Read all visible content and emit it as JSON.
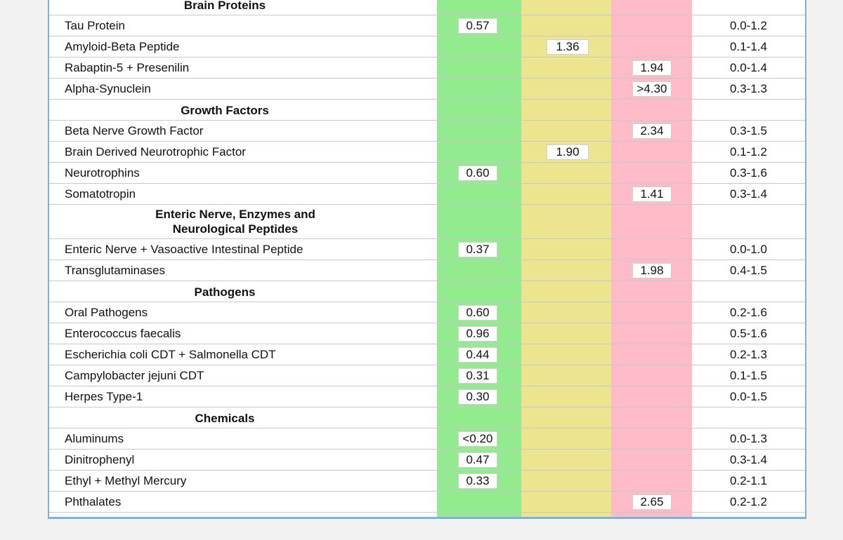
{
  "rows": [
    {
      "type": "header",
      "label": "Brain Proteins"
    },
    {
      "type": "item",
      "name": "Tau Protein",
      "value": "0.57",
      "zone": "g",
      "range": "0.0-1.2"
    },
    {
      "type": "item",
      "name": "Amyloid-Beta Peptide",
      "value": "1.36",
      "zone": "y",
      "range": "0.1-1.4"
    },
    {
      "type": "item",
      "name": "Rabaptin-5 + Presenilin",
      "value": "1.94",
      "zone": "r",
      "range": "0.0-1.4"
    },
    {
      "type": "item",
      "name": "Alpha-Synuclein",
      "value": ">4.30",
      "zone": "r",
      "range": "0.3-1.3"
    },
    {
      "type": "header",
      "label": "Growth Factors"
    },
    {
      "type": "item",
      "name": "Beta Nerve Growth Factor",
      "value": "2.34",
      "zone": "r",
      "range": "0.3-1.5"
    },
    {
      "type": "item",
      "name": "Brain Derived Neurotrophic Factor",
      "value": "1.90",
      "zone": "y",
      "range": "0.1-1.2"
    },
    {
      "type": "item",
      "name": "Neurotrophins",
      "value": "0.60",
      "zone": "g",
      "range": "0.3-1.6"
    },
    {
      "type": "item",
      "name": "Somatotropin",
      "value": "1.41",
      "zone": "r",
      "range": "0.3-1.4"
    },
    {
      "type": "header2",
      "line1": "Enteric Nerve, Enzymes and",
      "line2": "Neurological Peptides"
    },
    {
      "type": "item",
      "name": "Enteric Nerve + Vasoactive Intestinal Peptide",
      "value": "0.37",
      "zone": "g",
      "range": "0.0-1.0"
    },
    {
      "type": "item",
      "name": "Transglutaminases",
      "value": "1.98",
      "zone": "r",
      "range": "0.4-1.5"
    },
    {
      "type": "header",
      "label": "Pathogens"
    },
    {
      "type": "item",
      "name": "Oral Pathogens",
      "value": "0.60",
      "zone": "g",
      "range": "0.2-1.6"
    },
    {
      "type": "item",
      "name": "Enterococcus faecalis",
      "value": "0.96",
      "zone": "g",
      "range": "0.5-1.6"
    },
    {
      "type": "item",
      "name": "Escherichia coli CDT + Salmonella CDT",
      "value": "0.44",
      "zone": "g",
      "range": "0.2-1.3"
    },
    {
      "type": "item",
      "name": "Campylobacter jejuni CDT",
      "value": "0.31",
      "zone": "g",
      "range": "0.1-1.5"
    },
    {
      "type": "item",
      "name": "Herpes Type-1",
      "value": "0.30",
      "zone": "g",
      "range": "0.0-1.5"
    },
    {
      "type": "header",
      "label": "Chemicals"
    },
    {
      "type": "item",
      "name": "Aluminums",
      "value": "<0.20",
      "zone": "g",
      "range": "0.0-1.3"
    },
    {
      "type": "item",
      "name": "Dinitrophenyl",
      "value": "0.47",
      "zone": "g",
      "range": "0.3-1.4"
    },
    {
      "type": "item",
      "name": "Ethyl + Methyl Mercury",
      "value": "0.33",
      "zone": "g",
      "range": "0.2-1.1"
    },
    {
      "type": "item",
      "name": "Phthalates",
      "value": "2.65",
      "zone": "r",
      "range": "0.2-1.2"
    }
  ],
  "colors": {
    "green_zone": "#92eb8f",
    "yellow_zone": "#ede48f",
    "red_zone": "#ffbcc8",
    "frame": "#7fb0d8"
  }
}
